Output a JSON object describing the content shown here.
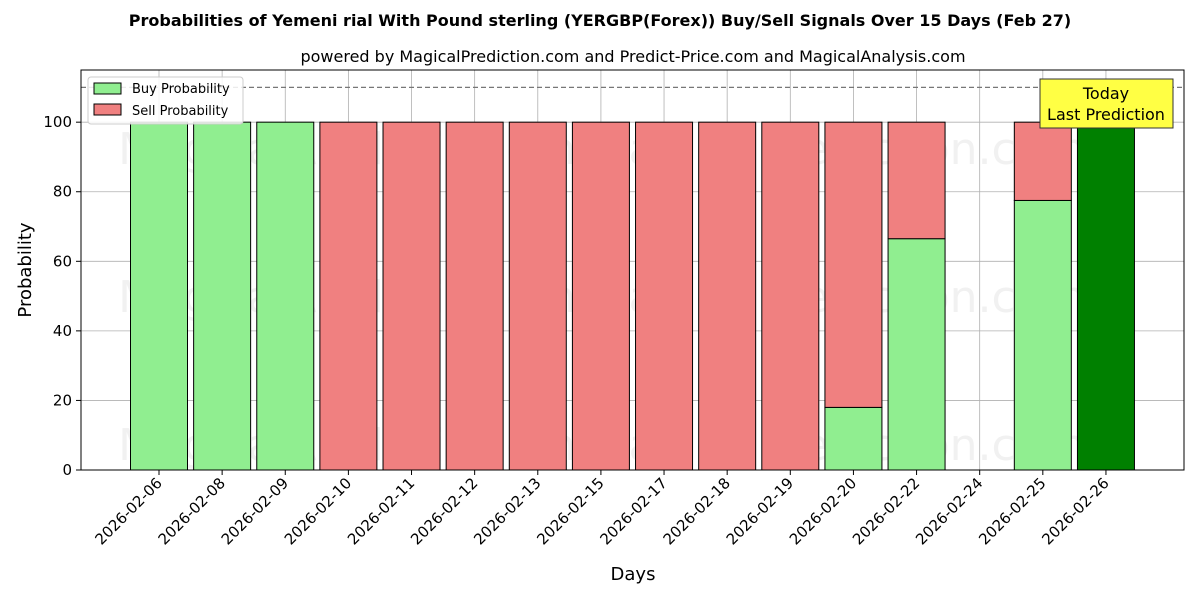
{
  "chart_data": {
    "type": "bar",
    "title": "Probabilities of Yemeni rial With Pound sterling (YERGBP(Forex)) Buy/Sell Signals Over 15 Days (Feb 27)",
    "subtitle": "powered by MagicalPrediction.com and Predict-Price.com and MagicalAnalysis.com",
    "xlabel": "Days",
    "ylabel": "Probability",
    "ylim": [
      0,
      115
    ],
    "yticks": [
      0,
      20,
      40,
      60,
      80,
      100
    ],
    "reference_line": 110,
    "grid": true,
    "legend_position": "top-left",
    "categories": [
      "2026-02-06",
      "2026-02-08",
      "2026-02-09",
      "2026-02-10",
      "2026-02-11",
      "2026-02-12",
      "2026-02-13",
      "2026-02-15",
      "2026-02-17",
      "2026-02-18",
      "2026-02-19",
      "2026-02-20",
      "2026-02-22",
      "2026-02-24",
      "2026-02-25",
      "2026-02-26"
    ],
    "series": [
      {
        "name": "Buy Probability",
        "color": "#90ee90",
        "values": [
          100,
          100,
          100,
          0,
          0,
          0,
          0,
          0,
          0,
          0,
          0,
          18,
          66.5,
          0,
          77.5,
          100
        ]
      },
      {
        "name": "Sell Probability",
        "color": "#f08080",
        "values": [
          0,
          0,
          0,
          100,
          100,
          100,
          100,
          100,
          100,
          100,
          100,
          82,
          33.5,
          0,
          22.5,
          0
        ]
      }
    ],
    "highlight": {
      "category": "2026-02-26",
      "color": "#008000"
    },
    "annotation": {
      "line1": "Today",
      "line2": "Last Prediction",
      "bg": "#ffff44"
    },
    "watermarks": [
      "MagicalAnalysis.com",
      "MagicalPrediction.com"
    ]
  }
}
